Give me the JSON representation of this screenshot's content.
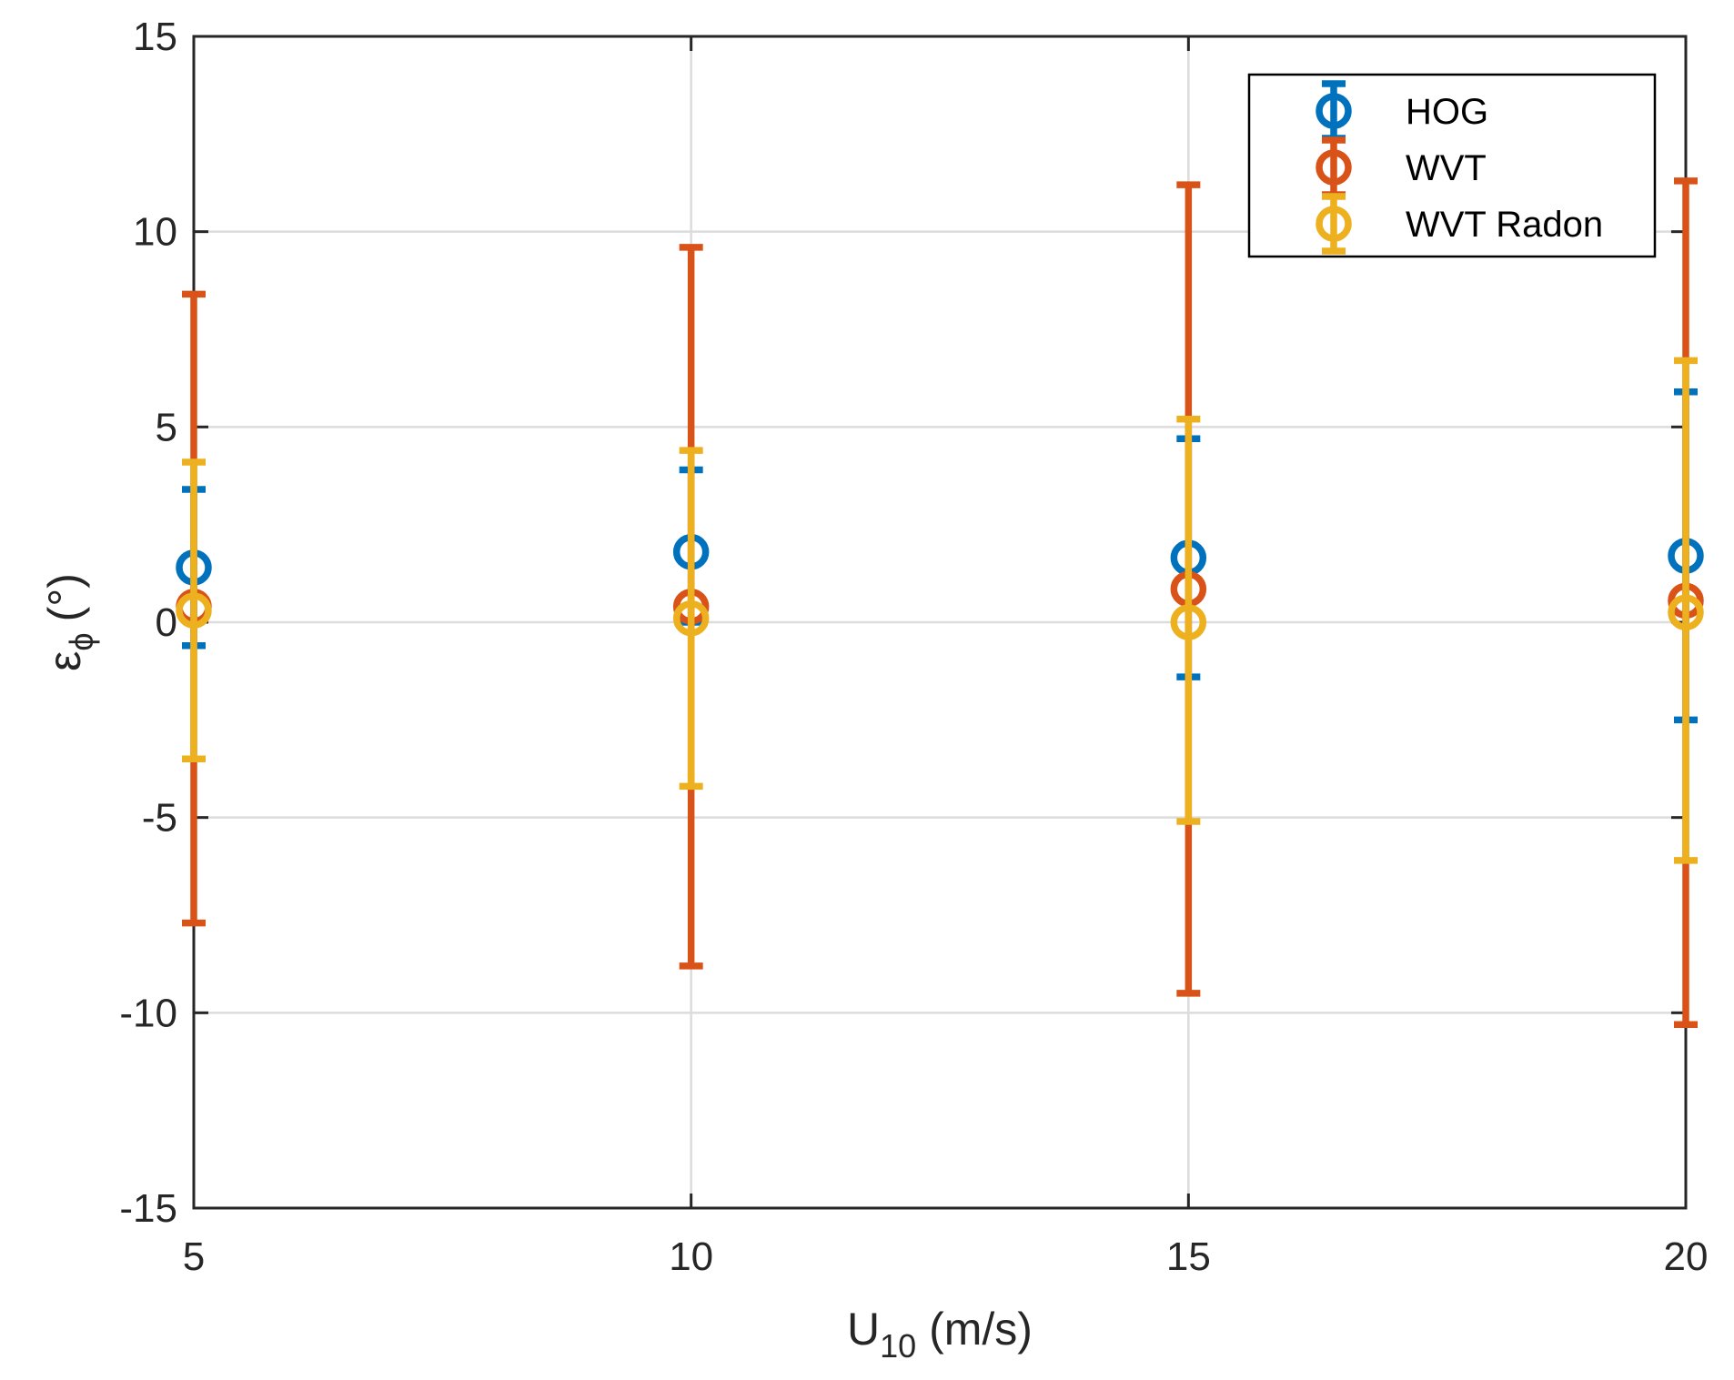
{
  "chart_data": {
    "type": "scatter",
    "subtype": "errorbar",
    "title": "",
    "xlabel": {
      "main": "U",
      "sub": "10",
      "suffix": " (m/s)"
    },
    "ylabel": {
      "main": "ε",
      "sub": "ϕ",
      "suffix": "(°)"
    },
    "xlim": [
      5,
      20
    ],
    "ylim": [
      -15,
      15
    ],
    "x_ticks": [
      5,
      10,
      15,
      20
    ],
    "x_tick_labels": [
      "5",
      "10",
      "15",
      "20"
    ],
    "y_ticks": [
      -15,
      -10,
      -5,
      0,
      5,
      10,
      15
    ],
    "y_tick_labels": [
      "-15",
      "-10",
      "-5",
      "0",
      "5",
      "10",
      "15"
    ],
    "grid": true,
    "legend_position": "top-right",
    "x": [
      5,
      10,
      15,
      20
    ],
    "series": [
      {
        "name": "HOG",
        "color": "#0072BD",
        "values": [
          1.4,
          1.8,
          1.65,
          1.7
        ],
        "lower": [
          -0.6,
          0.0,
          -1.4,
          -2.5
        ],
        "upper": [
          3.4,
          3.9,
          4.7,
          5.9
        ]
      },
      {
        "name": "WVT",
        "color": "#D95319",
        "values": [
          0.4,
          0.4,
          0.85,
          0.55
        ],
        "lower": [
          -7.7,
          -8.8,
          -9.5,
          -10.3
        ],
        "upper": [
          8.4,
          9.6,
          11.2,
          11.3
        ]
      },
      {
        "name": "WVT Radon",
        "color": "#EDB120",
        "values": [
          0.3,
          0.1,
          0.0,
          0.25
        ],
        "lower": [
          -3.5,
          -4.2,
          -5.1,
          -6.1
        ],
        "upper": [
          4.1,
          4.4,
          5.2,
          6.7
        ]
      }
    ]
  }
}
